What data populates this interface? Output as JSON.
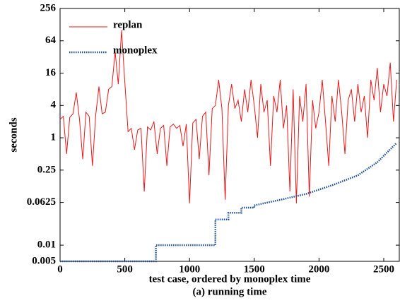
{
  "chart_data": {
    "type": "line",
    "y_label": "seconds",
    "x_label": "test case, ordered by monoplex time",
    "caption": "(a) running time",
    "yscale": "log",
    "ylim": [
      0.005,
      256
    ],
    "yticks": [
      0.005,
      0.01,
      0.0625,
      0.25,
      1,
      4,
      16,
      64,
      256
    ],
    "xlim": [
      0,
      2620
    ],
    "xticks": [
      0,
      500,
      1000,
      1500,
      2000,
      2500
    ],
    "legend": "upper left",
    "series": [
      {
        "name": "replan",
        "color": "#e8191b",
        "style": "solid",
        "x": [
          0,
          25,
          50,
          75,
          100,
          125,
          150,
          175,
          200,
          225,
          250,
          275,
          300,
          325,
          350,
          375,
          400,
          425,
          450,
          475,
          500,
          525,
          550,
          575,
          600,
          625,
          650,
          675,
          700,
          725,
          750,
          775,
          800,
          825,
          850,
          875,
          900,
          925,
          950,
          975,
          1000,
          1025,
          1050,
          1075,
          1100,
          1125,
          1150,
          1175,
          1200,
          1225,
          1250,
          1275,
          1300,
          1325,
          1350,
          1375,
          1400,
          1425,
          1450,
          1475,
          1500,
          1525,
          1550,
          1575,
          1600,
          1625,
          1650,
          1675,
          1700,
          1725,
          1750,
          1775,
          1800,
          1825,
          1850,
          1875,
          1900,
          1925,
          1950,
          1975,
          2000,
          2025,
          2050,
          2075,
          2100,
          2125,
          2150,
          2175,
          2200,
          2225,
          2250,
          2275,
          2300,
          2325,
          2350,
          2375,
          2400,
          2425,
          2450,
          2475,
          2500,
          2525,
          2550,
          2575,
          2600
        ],
        "values": [
          2.2,
          2.5,
          0.5,
          2.4,
          2.8,
          7,
          2.2,
          0.4,
          3,
          2.5,
          0.3,
          2.6,
          9,
          2.8,
          3,
          8,
          9,
          40,
          10,
          100,
          11,
          1.3,
          1.5,
          0.6,
          1.4,
          1.5,
          0.1,
          1.6,
          1.4,
          2,
          0.5,
          1.5,
          1.7,
          0.3,
          1.6,
          1.8,
          1.5,
          1.7,
          0.7,
          1.8,
          0.06,
          1.9,
          2.2,
          0.4,
          2.5,
          3,
          0.2,
          3.5,
          4,
          12,
          3.5,
          0.07,
          4,
          10,
          3.5,
          5,
          2,
          8,
          3,
          12,
          4,
          1,
          10,
          3,
          5,
          0.3,
          6,
          3,
          12,
          1.5,
          4,
          0.1,
          8,
          0.06,
          6,
          2,
          10,
          0.08,
          5,
          1.5,
          3,
          12,
          2,
          0.3,
          6,
          2,
          12,
          3,
          0.5,
          5,
          8,
          2,
          10,
          3,
          6,
          1,
          12,
          5,
          20,
          3,
          10,
          6,
          25,
          2,
          12
        ]
      },
      {
        "name": "monoplex",
        "color": "#1f4e9c",
        "style": "dotted",
        "x": [
          0,
          740,
          740,
          1200,
          1200,
          1300,
          1300,
          1400,
          1400,
          1500,
          1500,
          1700,
          1900,
          2100,
          2300,
          2450,
          2600
        ],
        "values": [
          0.005,
          0.005,
          0.01,
          0.01,
          0.03,
          0.03,
          0.04,
          0.04,
          0.05,
          0.05,
          0.055,
          0.07,
          0.09,
          0.13,
          0.2,
          0.35,
          0.8
        ]
      }
    ]
  }
}
